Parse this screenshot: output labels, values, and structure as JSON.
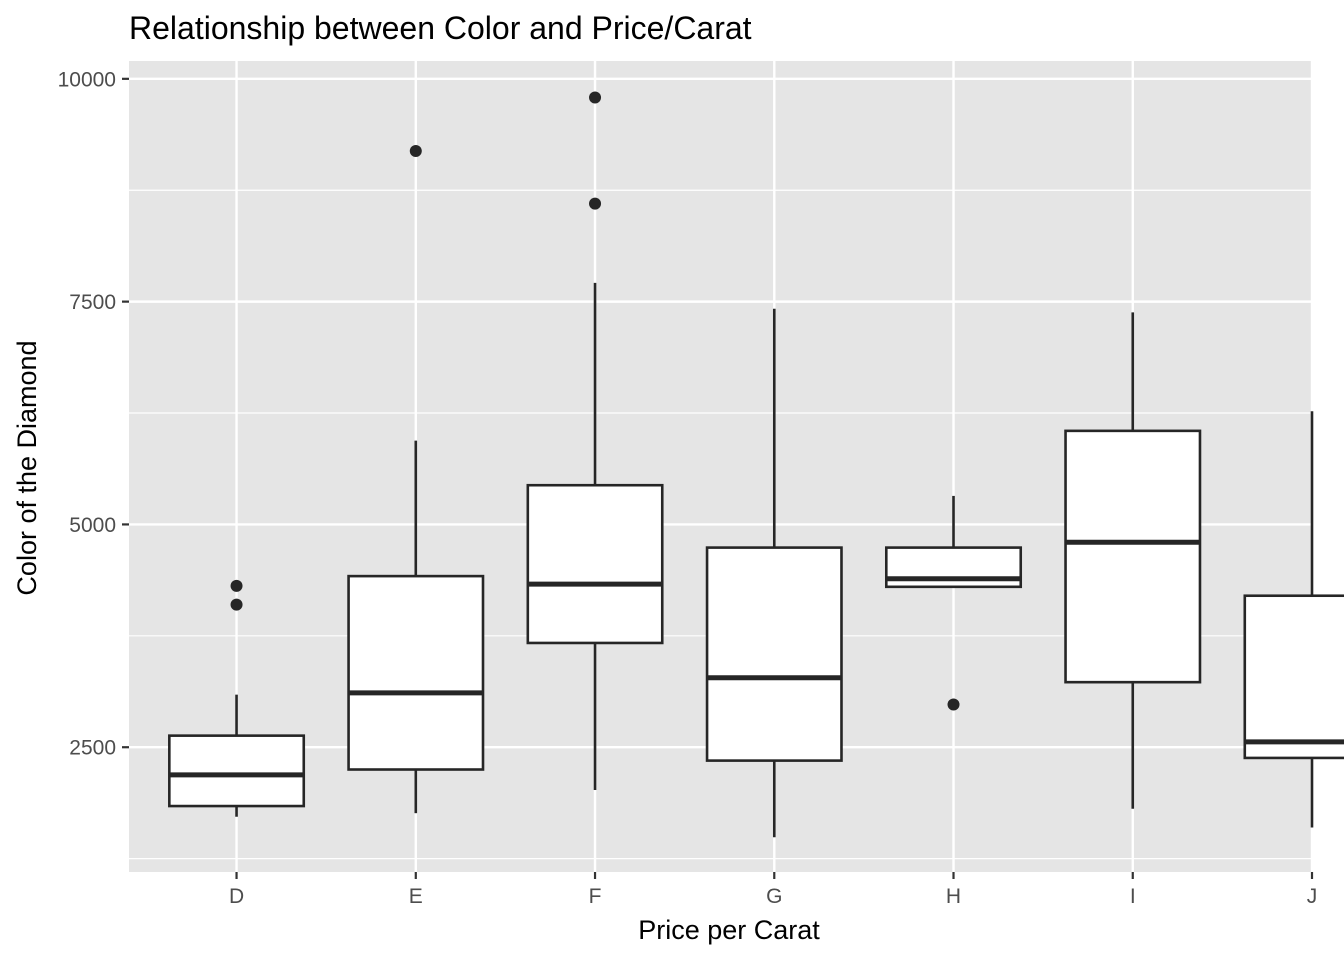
{
  "chart_data": {
    "type": "boxplot",
    "title": "Relationship between Color and Price/Carat",
    "xlabel": "Price per Carat",
    "ylabel": "Color of the Diamond",
    "categories": [
      "D",
      "E",
      "F",
      "G",
      "H",
      "I",
      "J"
    ],
    "y_ticks": [
      2500,
      5000,
      7500,
      10000
    ],
    "ylim": [
      1100,
      10200
    ],
    "grid": true,
    "legend": "none",
    "boxes": [
      {
        "category": "D",
        "whisker_low": 1720,
        "q1": 1840,
        "median": 2190,
        "q3": 2630,
        "whisker_high": 3090,
        "outliers": [
          4100,
          4310
        ]
      },
      {
        "category": "E",
        "whisker_low": 1760,
        "q1": 2250,
        "median": 3110,
        "q3": 4420,
        "whisker_high": 5940,
        "outliers": [
          9190
        ]
      },
      {
        "category": "F",
        "whisker_low": 2020,
        "q1": 3670,
        "median": 4330,
        "q3": 5440,
        "whisker_high": 7710,
        "outliers": [
          8600,
          9790
        ]
      },
      {
        "category": "G",
        "whisker_low": 1490,
        "q1": 2350,
        "median": 3280,
        "q3": 4740,
        "whisker_high": 7420,
        "outliers": []
      },
      {
        "category": "H",
        "whisker_low": 4290,
        "q1": 4300,
        "median": 4390,
        "q3": 4740,
        "whisker_high": 5320,
        "outliers": [
          2980
        ]
      },
      {
        "category": "I",
        "whisker_low": 1810,
        "q1": 3230,
        "median": 4800,
        "q3": 6050,
        "whisker_high": 7380,
        "outliers": []
      },
      {
        "category": "J",
        "whisker_low": 1600,
        "q1": 2380,
        "median": 2560,
        "q3": 4200,
        "whisker_high": 6270,
        "outliers": []
      }
    ],
    "colors": {
      "panel_background": "#e5e5e5",
      "grid_line": "#ffffff",
      "box_fill": "#ffffff",
      "box_stroke": "#262626",
      "outlier": "#262626",
      "tick_text": "#4d4d4d",
      "title_text": "#000000"
    }
  }
}
